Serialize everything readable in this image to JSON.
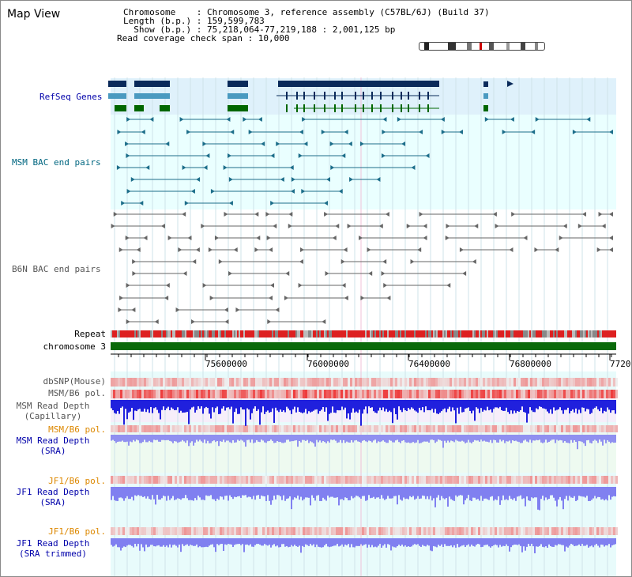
{
  "header": {
    "title": "Map View",
    "chromosome_line": "Chromosome    : Chromosome 3, reference assembly (C57BL/6J) (Build 37)",
    "length_line": "Length (b.p.) : 159,599,783",
    "show_line": "  Show (b.p.) : 75,218,064-77,219,188 : 2,001,125 bp",
    "span_line": "Read coverage check span : 10,000"
  },
  "tracks": {
    "refseq": "RefSeq Genes",
    "msm_bac": "MSM BAC end pairs",
    "b6n_bac": "B6N BAC end pairs",
    "repeat": "Repeat",
    "chromosome": "chromosome 3",
    "dbsnp": "dbSNP(Mouse)",
    "msm_b6_pol": "MSM/B6 pol.",
    "msm_depth_cap_1": "MSM Read Depth",
    "msm_depth_cap_2": "(Capillary)",
    "msm_b6_pol2": "MSM/B6 pol.",
    "msm_depth_sra_1": "MSM Read Depth",
    "msm_depth_sra_2": "(SRA)",
    "jf1_b6_pol": "JF1/B6 pol.",
    "jf1_depth_sra_1": "JF1 Read Depth",
    "jf1_depth_sra_2": "(SRA)",
    "jf1_b6_pol2": "JF1/B6 pol.",
    "jf1_depth_trim_1": "JF1 Read Depth",
    "jf1_depth_trim_2": "(SRA trimmed)"
  },
  "axis": {
    "ticks": [
      "75600000",
      "76000000",
      "76400000",
      "76800000",
      "7720"
    ]
  },
  "colors": {
    "refseq_bg": "#dff1fb",
    "lightcyan_bg": "#eaffff",
    "gene_dark": "#0a2a5a",
    "gene_mid": "#4a9ac0",
    "gene_green": "#006600",
    "bac_teal": "#1d6e8a",
    "bac_gray": "#666666",
    "chrom_green": "#0a6a0a",
    "depth_blue": "#2020dd",
    "depth_light": "#8080f0",
    "pol_red": "#ee4444"
  }
}
